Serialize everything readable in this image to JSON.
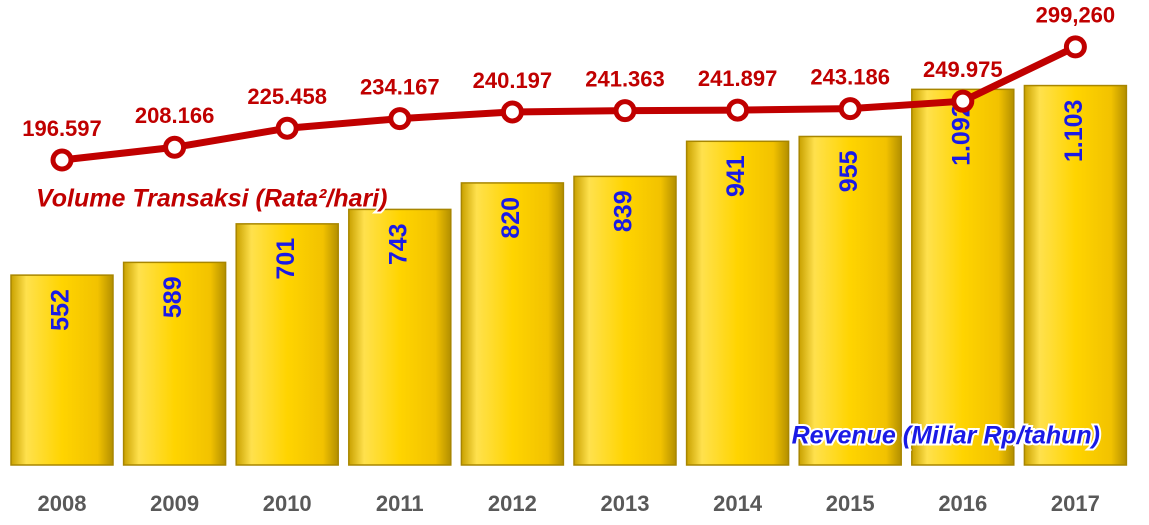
{
  "chart_data": {
    "type": "bar",
    "categories": [
      "2008",
      "2009",
      "2010",
      "2011",
      "2012",
      "2013",
      "2014",
      "2015",
      "2016",
      "2017"
    ],
    "series": [
      {
        "name": "Revenue (Miliar Rp/tahun)",
        "color": "#ffd400",
        "values": [
          552,
          589,
          701,
          743,
          820,
          839,
          941,
          955,
          1092,
          1103
        ],
        "value_labels": [
          "552",
          "589",
          "701",
          "743",
          "820",
          "839",
          "941",
          "955",
          "1.092",
          "1.103"
        ]
      },
      {
        "name": "Volume Transaksi (Rata²/hari)",
        "color": "#c00000",
        "type": "line",
        "axis": "y2",
        "values": [
          196597,
          208166,
          225458,
          234167,
          240197,
          241363,
          241897,
          243186,
          249975,
          299260
        ],
        "value_labels": [
          "196.597",
          "208.166",
          "225.458",
          "234.167",
          "240.197",
          "241.363",
          "241.897",
          "243.186",
          "249.975",
          "299,260"
        ]
      }
    ],
    "ylim": [
      0,
      1250
    ],
    "y2lim": [
      -80000,
      310000
    ]
  }
}
